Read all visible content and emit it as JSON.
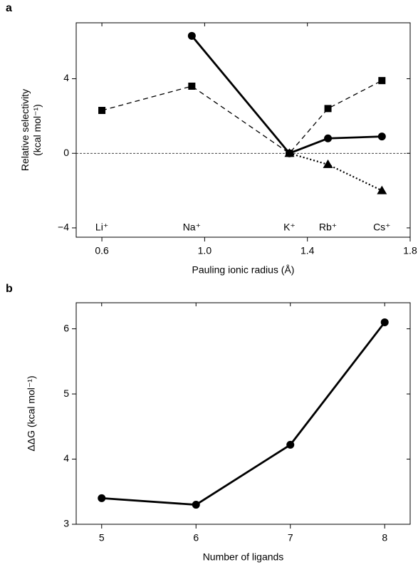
{
  "chart_data": [
    {
      "type": "line",
      "panel_label": "a",
      "xlabel": "Pauling ionic radius (Å)",
      "ylabel_lines": [
        "Relative selectivity",
        "(kcal mol⁻¹)"
      ],
      "x": [
        0.6,
        0.95,
        1.33,
        1.48,
        1.69
      ],
      "ion_labels": [
        "Li⁺",
        "Na⁺",
        "K⁺",
        "Rb⁺",
        "Cs⁺"
      ],
      "ion_label_y": -4,
      "series": [
        {
          "color": "#000000",
          "dash": "dashed",
          "marker": "square",
          "values": [
            2.3,
            3.6,
            0,
            2.4,
            3.9
          ]
        },
        {
          "color": "#000000",
          "dash": "solid",
          "marker": "circle",
          "values": [
            null,
            6.3,
            0,
            0.8,
            0.9
          ]
        },
        {
          "color": "#000000",
          "dash": "dotted",
          "marker": "triangle",
          "values": [
            null,
            null,
            0,
            -0.6,
            -2.0
          ]
        }
      ],
      "reference_line": 0,
      "xlim": [
        0.5,
        1.8
      ],
      "xticks": [
        0.6,
        {
          "value": 1,
          "label": "1.0"
        },
        1.4,
        1.8
      ],
      "ylim": [
        -4.5,
        7
      ],
      "yticks": [
        {
          "value": -4,
          "label": "−4"
        },
        0,
        4
      ]
    },
    {
      "type": "line",
      "panel_label": "b",
      "xlabel": "Number of ligands",
      "ylabel_lines": [
        "ΔΔG (kcal mol⁻¹)"
      ],
      "x": [
        5,
        6,
        7,
        8
      ],
      "series": [
        {
          "color": "#000000",
          "dash": "solid",
          "marker": "circle",
          "values": [
            3.4,
            3.3,
            4.22,
            6.1
          ]
        }
      ],
      "xlim": [
        4.73,
        8.27
      ],
      "xticks": [
        5,
        6,
        7,
        8
      ],
      "ylim": [
        3,
        6.4
      ],
      "yticks": [
        3,
        4,
        5,
        6
      ]
    }
  ]
}
